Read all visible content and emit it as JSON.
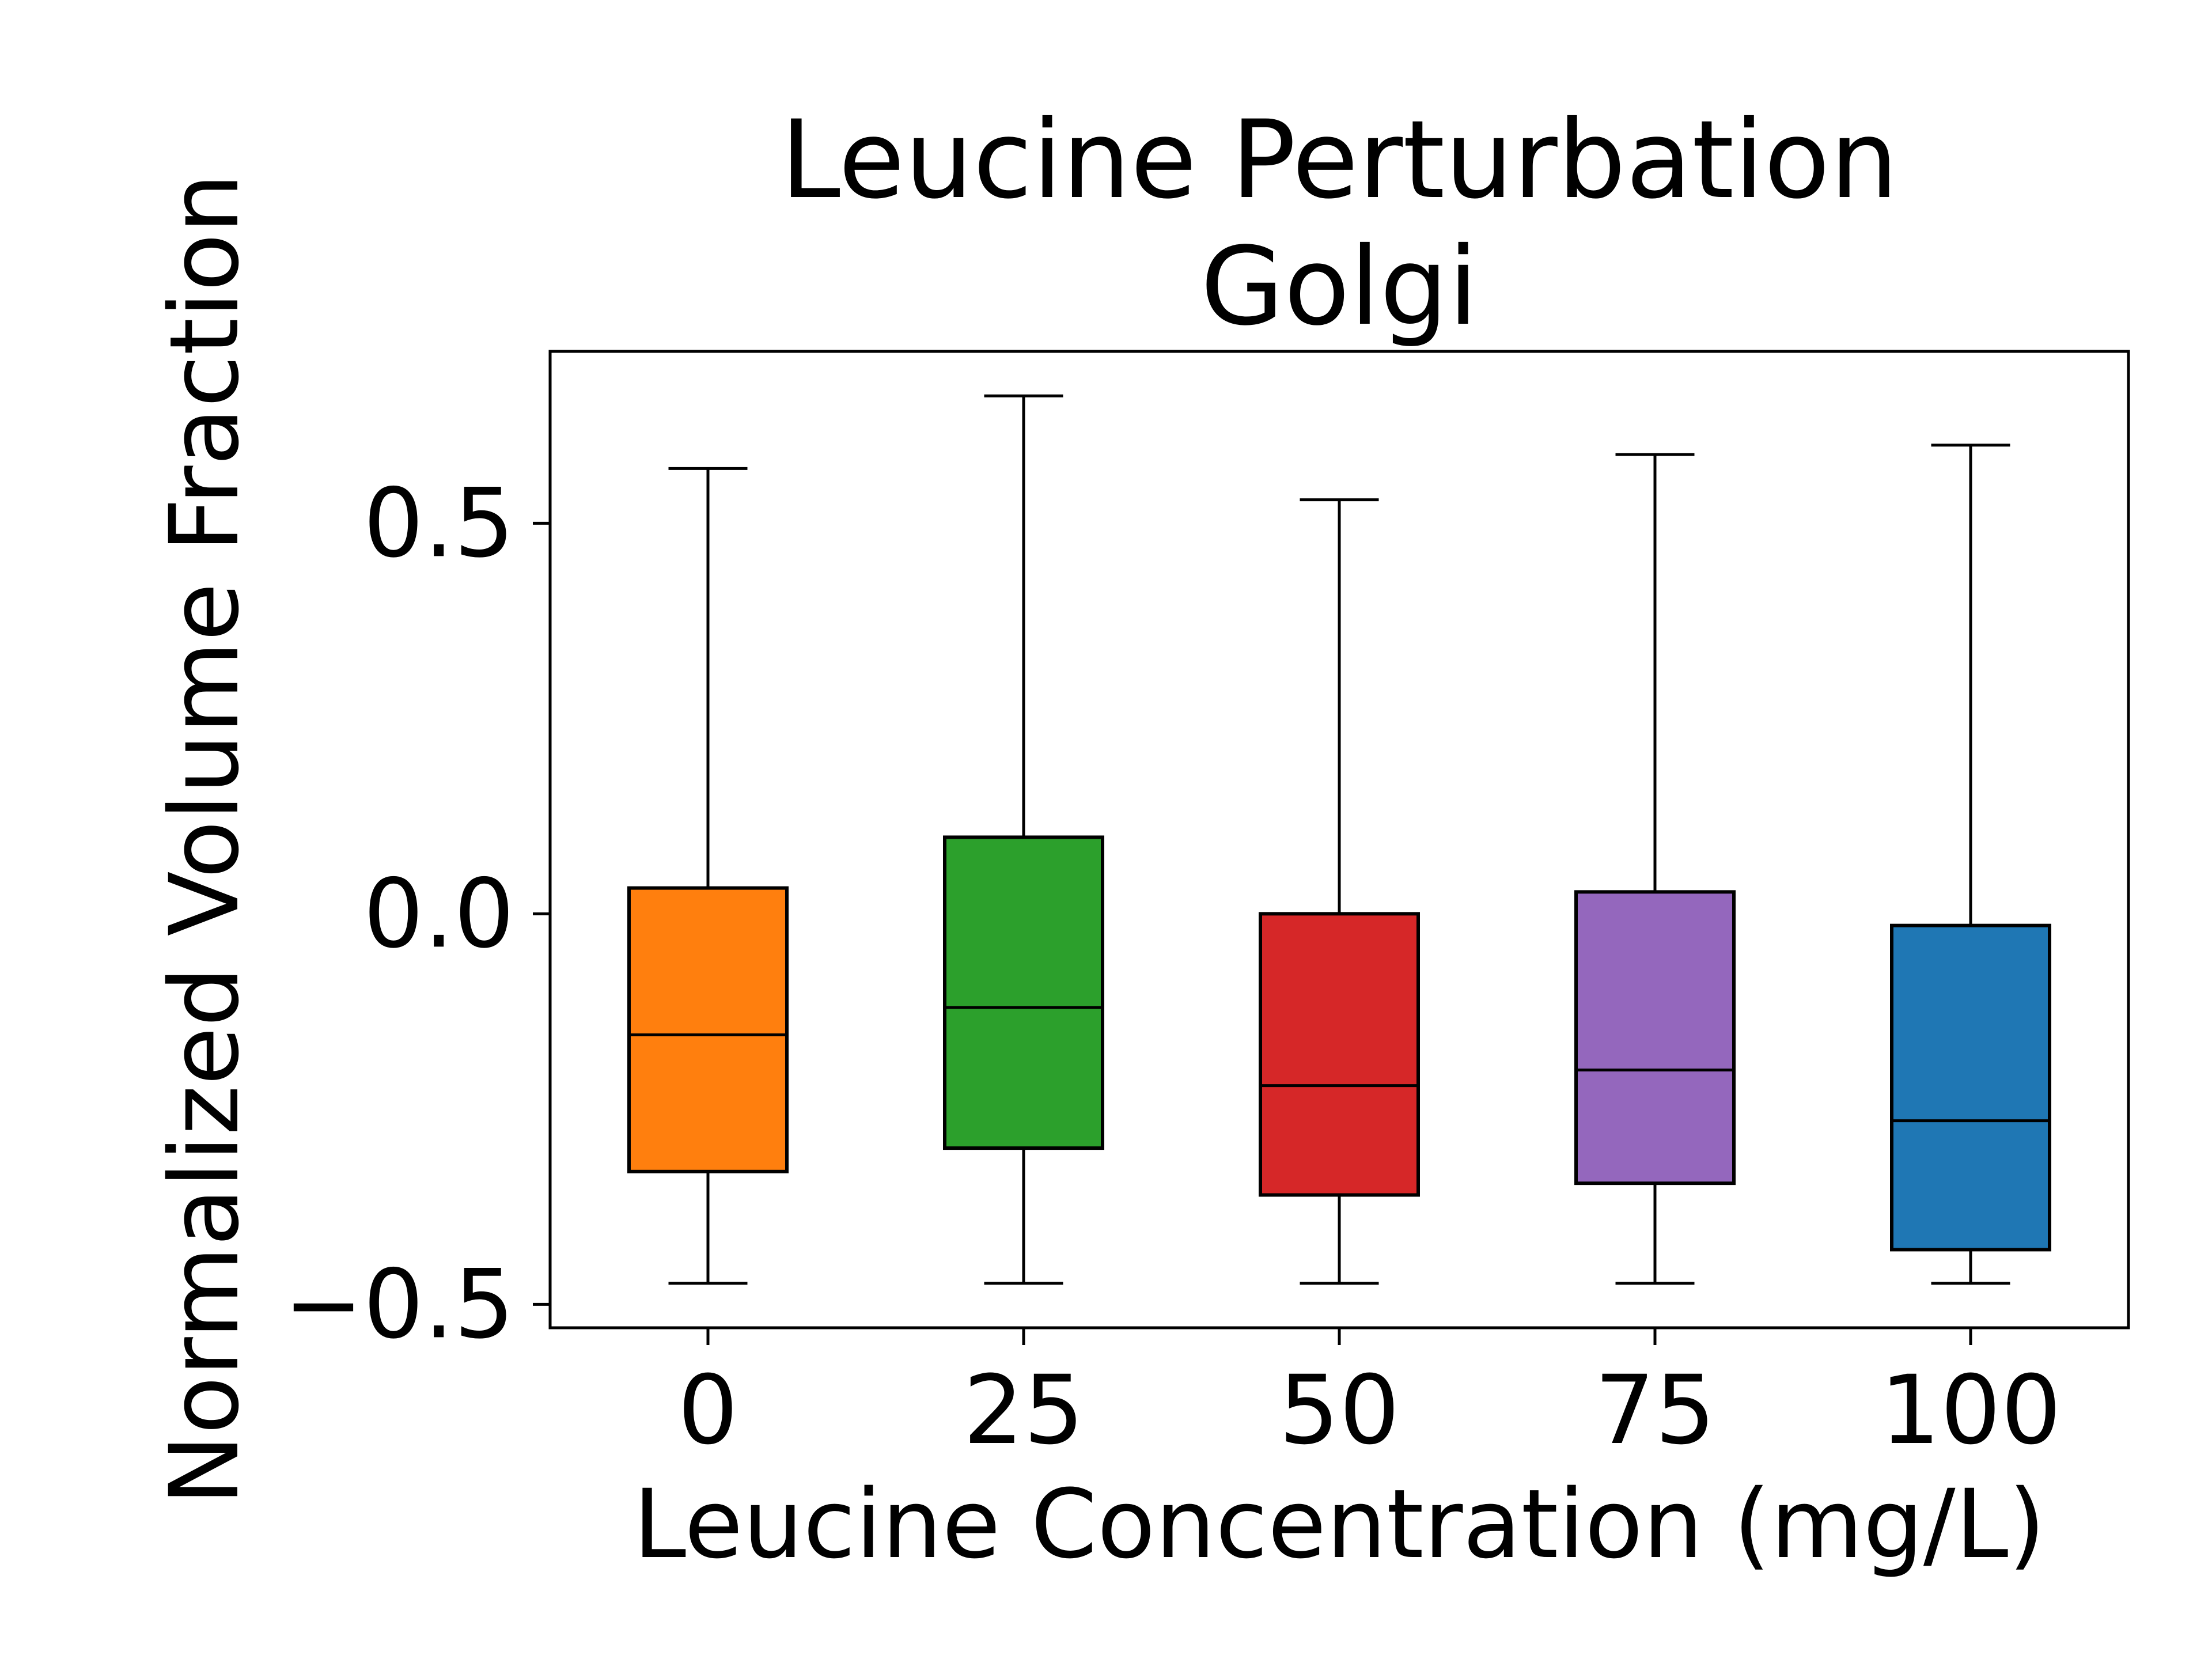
{
  "chart_data": {
    "type": "box",
    "title": "Leucine Perturbation",
    "subtitle": "Golgi",
    "xlabel": "Leucine Concentration (mg/L)",
    "ylabel": "Normalized Volume Fraction",
    "categories": [
      "0",
      "25",
      "50",
      "75",
      "100"
    ],
    "ylim": [
      -0.53,
      0.72
    ],
    "yticks": [
      -0.5,
      0.0,
      0.5
    ],
    "ytick_labels": [
      "−0.5",
      "0.0",
      "0.5"
    ],
    "grid": false,
    "legend": "none",
    "boxes": [
      {
        "category": "0",
        "whisker_low": -0.473,
        "q1": -0.33,
        "median": -0.155,
        "q3": 0.033,
        "whisker_high": 0.57,
        "color": "#ff7f0e"
      },
      {
        "category": "25",
        "whisker_low": -0.473,
        "q1": -0.3,
        "median": -0.12,
        "q3": 0.098,
        "whisker_high": 0.663,
        "color": "#2ca02c"
      },
      {
        "category": "50",
        "whisker_low": -0.473,
        "q1": -0.36,
        "median": -0.22,
        "q3": 0.0,
        "whisker_high": 0.53,
        "color": "#d62728"
      },
      {
        "category": "75",
        "whisker_low": -0.473,
        "q1": -0.345,
        "median": -0.2,
        "q3": 0.028,
        "whisker_high": 0.588,
        "color": "#9467bd"
      },
      {
        "category": "100",
        "whisker_low": -0.473,
        "q1": -0.43,
        "median": -0.265,
        "q3": -0.015,
        "whisker_high": 0.6,
        "color": "#1f77b4"
      }
    ]
  }
}
